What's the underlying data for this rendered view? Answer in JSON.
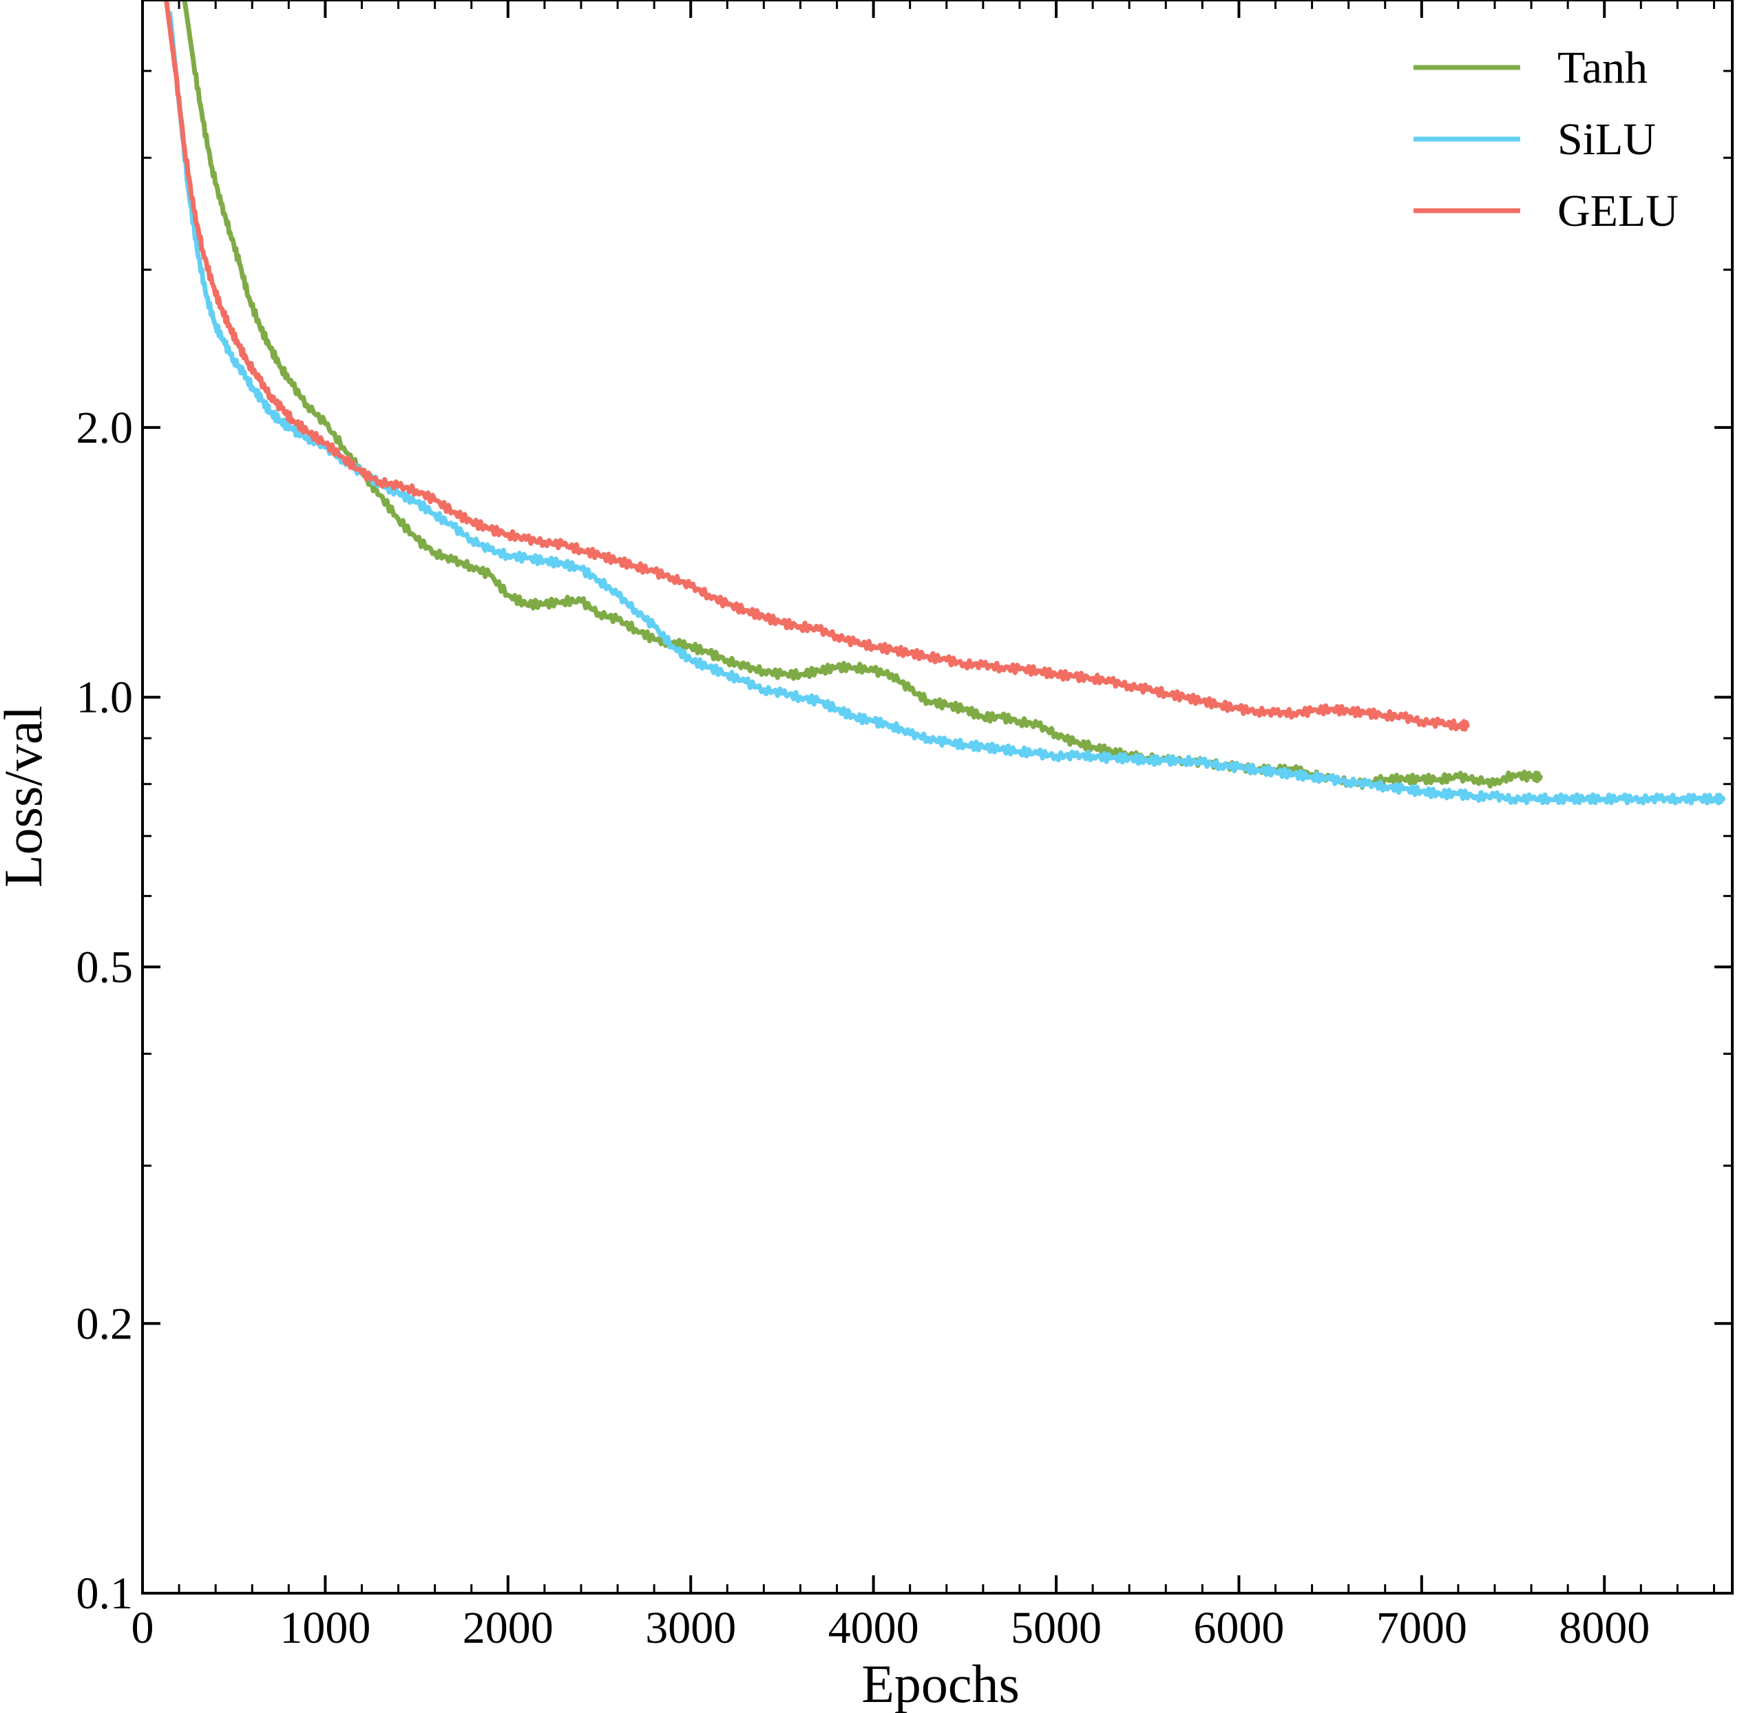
{
  "chart_data": {
    "type": "line",
    "title": "",
    "xlabel": "Epochs",
    "ylabel": "Loss/val",
    "xlim": [
      0,
      8700
    ],
    "ylim": [
      0.1,
      6.0
    ],
    "yscale": "log",
    "grid": false,
    "legend_position": "top-right",
    "xticks": [
      0,
      1000,
      2000,
      3000,
      4000,
      5000,
      6000,
      7000,
      8000
    ],
    "xtick_labels": [
      "0",
      "1000",
      "2000",
      "3000",
      "4000",
      "5000",
      "6000",
      "7000",
      "8000"
    ],
    "yticks": [
      0.1,
      0.2,
      0.5,
      1.0,
      2.0
    ],
    "ytick_labels": [
      "0.1",
      "0.2",
      "0.5",
      "1.0",
      "2.0"
    ],
    "series": [
      {
        "name": "Tanh",
        "color": "#7fab47",
        "x": [
          230,
          280,
          330,
          380,
          430,
          480,
          530,
          580,
          640,
          700,
          760,
          820,
          900,
          1000,
          1100,
          1200,
          1300,
          1400,
          1500,
          1600,
          1700,
          1800,
          1900,
          2000,
          2100,
          2200,
          2300,
          2400,
          2500,
          2600,
          2700,
          2800,
          2900,
          3000,
          3100,
          3200,
          3300,
          3400,
          3500,
          3600,
          3700,
          3800,
          3900,
          4000,
          4100,
          4200,
          4300,
          4400,
          4500,
          4600,
          4700,
          4800,
          4900,
          5000,
          5100,
          5200,
          5300,
          5400,
          5500,
          5600,
          5700,
          5800,
          5900,
          6000,
          6100,
          6200,
          6300,
          6400,
          6500,
          6600,
          6700,
          6800,
          6900,
          7000,
          7100,
          7200,
          7300,
          7400,
          7500,
          7600,
          7650
        ],
        "values": [
          6.0,
          5.1,
          4.4,
          3.9,
          3.55,
          3.3,
          3.05,
          2.8,
          2.6,
          2.45,
          2.33,
          2.23,
          2.12,
          2.02,
          1.9,
          1.78,
          1.68,
          1.58,
          1.5,
          1.45,
          1.42,
          1.4,
          1.37,
          1.3,
          1.27,
          1.27,
          1.28,
          1.28,
          1.24,
          1.22,
          1.19,
          1.16,
          1.15,
          1.14,
          1.12,
          1.1,
          1.08,
          1.07,
          1.06,
          1.06,
          1.07,
          1.08,
          1.08,
          1.07,
          1.06,
          1.02,
          0.99,
          0.98,
          0.97,
          0.95,
          0.95,
          0.94,
          0.93,
          0.91,
          0.89,
          0.88,
          0.87,
          0.86,
          0.855,
          0.85,
          0.85,
          0.845,
          0.84,
          0.835,
          0.83,
          0.83,
          0.83,
          0.82,
          0.81,
          0.805,
          0.8,
          0.81,
          0.81,
          0.81,
          0.81,
          0.815,
          0.81,
          0.8,
          0.82,
          0.815,
          0.815
        ]
      },
      {
        "name": "SiLU",
        "color": "#62cff4",
        "x": [
          150,
          200,
          250,
          300,
          350,
          400,
          450,
          500,
          550,
          600,
          650,
          700,
          760,
          820,
          900,
          1000,
          1100,
          1200,
          1300,
          1400,
          1500,
          1600,
          1700,
          1800,
          1900,
          2000,
          2100,
          2200,
          2300,
          2400,
          2500,
          2600,
          2700,
          2800,
          2900,
          3000,
          3100,
          3200,
          3300,
          3400,
          3500,
          3600,
          3700,
          3800,
          3900,
          4000,
          4100,
          4200,
          4300,
          4400,
          4500,
          4600,
          4700,
          4800,
          4900,
          5000,
          5100,
          5200,
          5300,
          5400,
          5500,
          5600,
          5700,
          5800,
          5900,
          6000,
          6100,
          6200,
          6300,
          6400,
          6500,
          6600,
          6700,
          6800,
          6900,
          7000,
          7100,
          7200,
          7300,
          7400,
          7500,
          7600,
          7700,
          7800,
          7900,
          8000,
          8100,
          8200,
          8300,
          8400,
          8500,
          8600,
          8650
        ],
        "values": [
          5.8,
          4.6,
          3.7,
          3.15,
          2.8,
          2.6,
          2.48,
          2.38,
          2.3,
          2.22,
          2.15,
          2.08,
          2.03,
          1.99,
          1.95,
          1.9,
          1.84,
          1.78,
          1.73,
          1.69,
          1.65,
          1.6,
          1.55,
          1.5,
          1.46,
          1.44,
          1.43,
          1.42,
          1.41,
          1.39,
          1.35,
          1.3,
          1.25,
          1.2,
          1.14,
          1.1,
          1.08,
          1.06,
          1.04,
          1.02,
          1.01,
          1.0,
          0.99,
          0.97,
          0.95,
          0.94,
          0.93,
          0.91,
          0.9,
          0.89,
          0.885,
          0.88,
          0.875,
          0.87,
          0.865,
          0.86,
          0.86,
          0.86,
          0.855,
          0.855,
          0.85,
          0.85,
          0.85,
          0.845,
          0.84,
          0.835,
          0.83,
          0.825,
          0.82,
          0.815,
          0.81,
          0.805,
          0.8,
          0.795,
          0.79,
          0.785,
          0.78,
          0.78,
          0.775,
          0.775,
          0.77,
          0.77,
          0.77,
          0.77,
          0.77,
          0.77,
          0.77,
          0.77,
          0.77,
          0.77,
          0.77,
          0.77,
          0.77
        ]
      },
      {
        "name": "GELU",
        "color": "#f26e63",
        "x": [
          130,
          180,
          230,
          280,
          330,
          380,
          430,
          480,
          530,
          580,
          640,
          700,
          760,
          820,
          900,
          1000,
          1100,
          1200,
          1300,
          1400,
          1500,
          1600,
          1700,
          1800,
          1900,
          2000,
          2100,
          2200,
          2300,
          2400,
          2500,
          2600,
          2700,
          2800,
          2900,
          3000,
          3100,
          3200,
          3300,
          3400,
          3500,
          3600,
          3700,
          3800,
          3900,
          4000,
          4100,
          4200,
          4300,
          4400,
          4500,
          4600,
          4700,
          4800,
          4900,
          5000,
          5100,
          5200,
          5300,
          5400,
          5500,
          5600,
          5700,
          5800,
          5900,
          6000,
          6100,
          6200,
          6300,
          6400,
          6500,
          6600,
          6700,
          6800,
          6900,
          7000,
          7100,
          7200,
          7250
        ],
        "values": [
          6.0,
          5.0,
          4.1,
          3.5,
          3.15,
          2.9,
          2.72,
          2.58,
          2.46,
          2.36,
          2.26,
          2.17,
          2.1,
          2.04,
          1.98,
          1.92,
          1.85,
          1.78,
          1.74,
          1.72,
          1.7,
          1.66,
          1.61,
          1.57,
          1.54,
          1.52,
          1.5,
          1.49,
          1.48,
          1.46,
          1.44,
          1.42,
          1.4,
          1.38,
          1.36,
          1.33,
          1.3,
          1.27,
          1.25,
          1.23,
          1.21,
          1.2,
          1.19,
          1.17,
          1.15,
          1.14,
          1.13,
          1.12,
          1.11,
          1.1,
          1.09,
          1.085,
          1.08,
          1.075,
          1.07,
          1.06,
          1.055,
          1.05,
          1.04,
          1.03,
          1.02,
          1.01,
          1.0,
          0.99,
          0.98,
          0.97,
          0.965,
          0.96,
          0.96,
          0.965,
          0.97,
          0.965,
          0.96,
          0.955,
          0.95,
          0.94,
          0.935,
          0.93,
          0.93
        ]
      }
    ]
  }
}
